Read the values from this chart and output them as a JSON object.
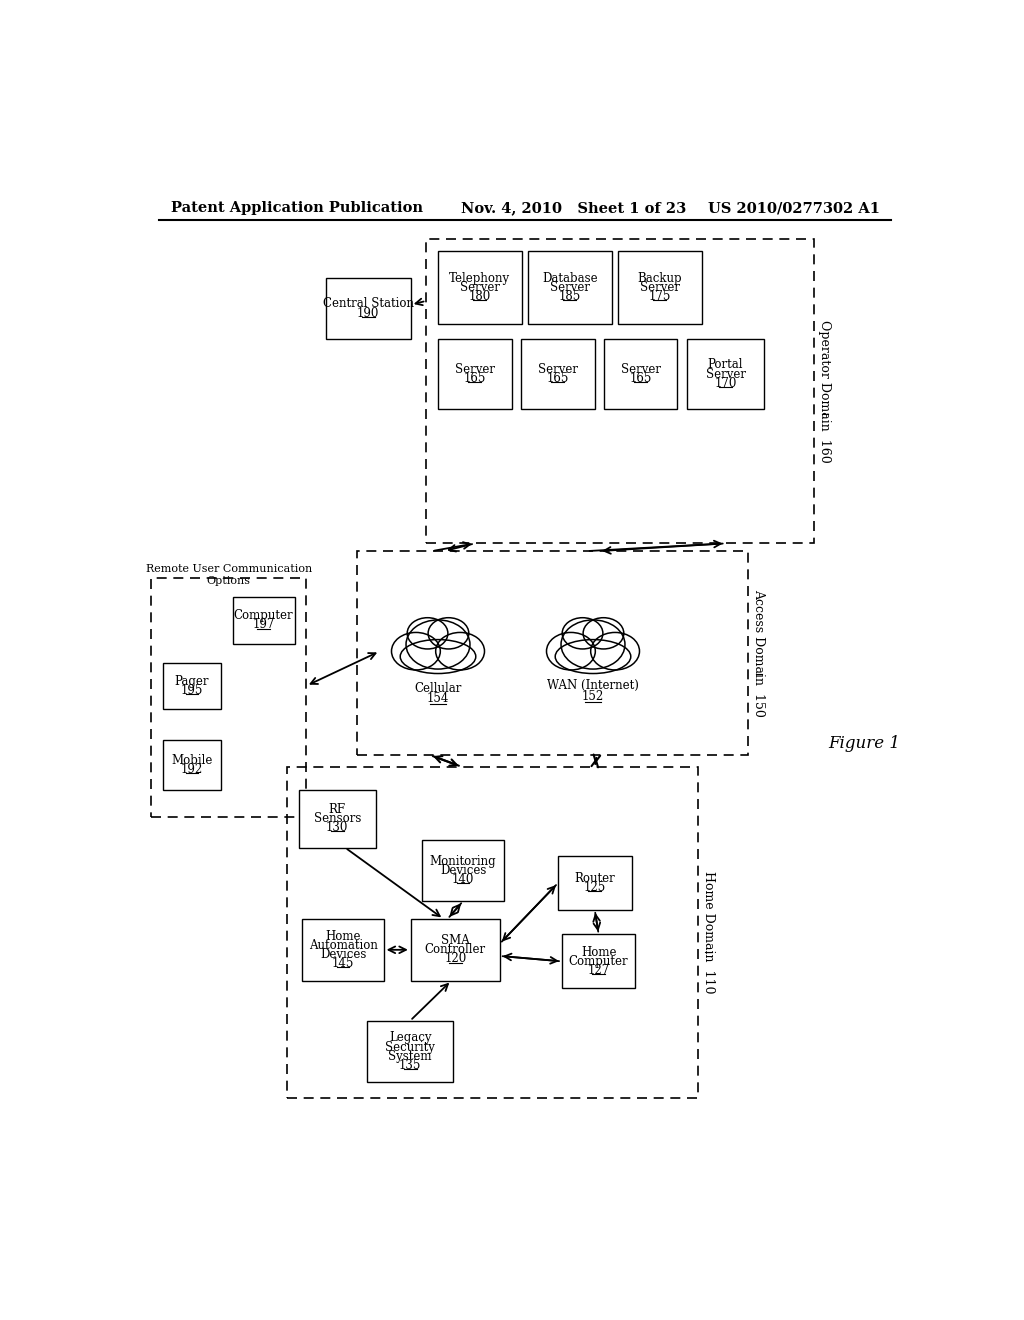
{
  "bg_color": "#ffffff",
  "header_left": "Patent Application Publication",
  "header_mid": "Nov. 4, 2010   Sheet 1 of 23",
  "header_right": "US 2010/0277302 A1",
  "figure_label": "Figure 1",
  "operator_domain_label": "Operator Domain 160",
  "access_domain_label": "Access Domain 150",
  "home_domain_label": "Home Domain 110",
  "remote_label_line1": "Remote User Communication",
  "remote_label_line2": "Options"
}
